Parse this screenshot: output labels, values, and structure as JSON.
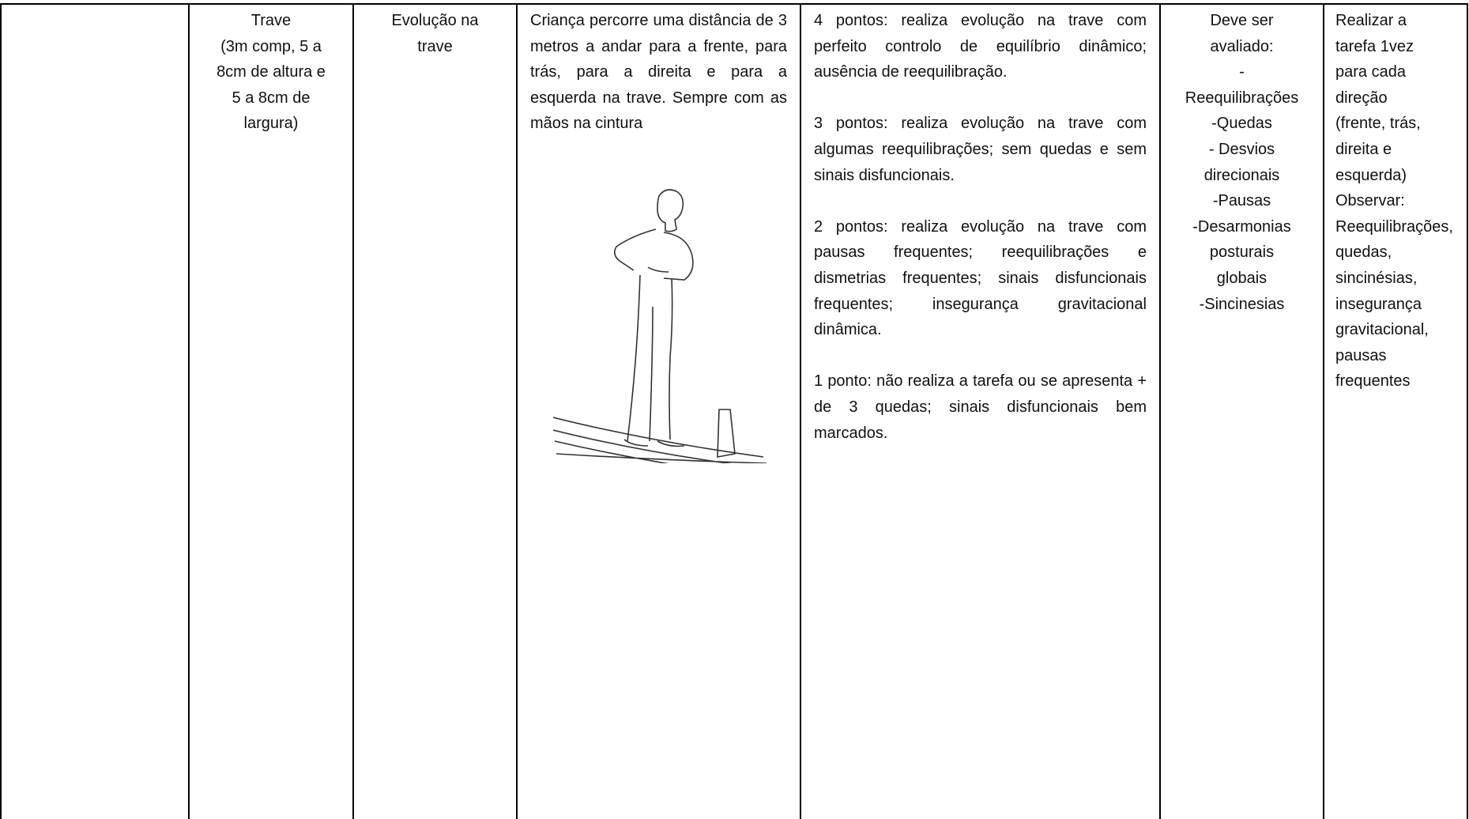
{
  "table": {
    "rows": [
      [
        {
          "lines": [
            "Trave",
            "(3m comp, 5 a",
            "8cm de altura e",
            "5 a 8cm de",
            "largura)"
          ]
        },
        {
          "lines": [
            "Evolução na",
            "trave"
          ]
        },
        {
          "paragraphs": [
            "Criança percorre uma distância de 3 metros a andar para a frente, para trás, para a direita e para a esquerda na trave. Sempre com as mãos na cintura"
          ]
        },
        {
          "paragraphs": [
            "4 pontos: realiza evolução na trave com perfeito controlo de equilíbrio dinâmico; ausência de reequilibração.",
            "3 pontos: realiza evolução na trave com algumas reequilibrações; sem quedas e sem sinais disfuncionais.",
            "2 pontos: realiza evolução na trave com pausas frequentes; reequilibrações e dismetrias frequentes; sinais disfuncionais frequentes; insegurança gravitacional dinâmica.",
            "1 ponto: não realiza a tarefa ou se apresenta + de 3 quedas; sinais disfuncionais bem marcados."
          ]
        },
        {
          "lines": [
            "Deve ser",
            "avaliado:",
            "-",
            "Reequilibrações",
            "-Quedas",
            "- Desvios",
            "direcionais",
            "-Pausas",
            "-Desarmonias",
            "posturais",
            "globais",
            "-Sincinesias"
          ]
        },
        {
          "lines": [
            "Realizar a",
            "tarefa 1vez",
            "para cada",
            "direção",
            "(frente, trás,",
            "direita e",
            "esquerda)"
          ],
          "paragraphs": [
            "Observar:",
            "Reequilibrações, quedas, sincinésias, insegurança gravitacional, pausas frequentes"
          ]
        }
      ]
    ]
  }
}
